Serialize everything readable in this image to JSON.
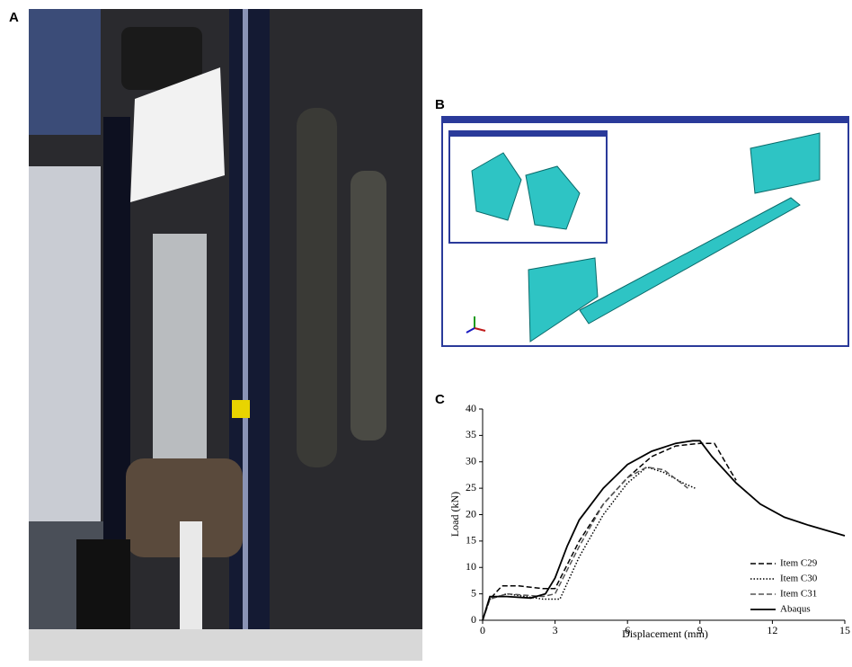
{
  "panels": {
    "a": "A",
    "b": "B",
    "c": "C"
  },
  "chart_data": {
    "type": "line",
    "x_label": "Displacement  (mm)",
    "y_label": "Load (kN)",
    "xlim": [
      0,
      15
    ],
    "ylim": [
      0,
      40
    ],
    "xticks": [
      0,
      3,
      6,
      9,
      12,
      15
    ],
    "yticks": [
      0,
      5,
      10,
      15,
      20,
      25,
      30,
      35,
      40
    ],
    "legend": "lower right",
    "series": [
      {
        "name": "Item C29",
        "color": "#000000",
        "style": "dashed",
        "x": [
          0,
          0.3,
          0.8,
          1.5,
          2.5,
          3,
          4,
          5,
          6,
          7,
          8,
          9,
          9.6,
          10.3,
          10.5
        ],
        "values": [
          0,
          4,
          6.5,
          6.5,
          6,
          6,
          15,
          22,
          27,
          31,
          33,
          33.5,
          33.5,
          28,
          26.5
        ]
      },
      {
        "name": "Item C30",
        "color": "#000000",
        "style": "dotted",
        "x": [
          0,
          0.3,
          1,
          2.5,
          3.2,
          4,
          5,
          6,
          6.8,
          7.5,
          8.3,
          8.8
        ],
        "values": [
          0,
          4,
          5,
          4,
          4,
          12,
          20,
          26,
          29,
          28,
          26,
          25
        ]
      },
      {
        "name": "Item C31",
        "color": "#555555",
        "style": "dashed",
        "x": [
          0,
          0.3,
          1,
          2.5,
          3,
          4,
          5,
          6,
          6.8,
          7.5,
          8.5
        ],
        "values": [
          0,
          4,
          5,
          4.5,
          5,
          14,
          22,
          27,
          29,
          28.5,
          25
        ]
      },
      {
        "name": "Abaqus",
        "color": "#000000",
        "style": "solid",
        "x": [
          0,
          0.3,
          1,
          2,
          2.6,
          3,
          3.5,
          4,
          5,
          6,
          7,
          8,
          8.7,
          9,
          9.5,
          10.5,
          11.5,
          12.5,
          13.5,
          15
        ],
        "values": [
          0,
          4.5,
          4.5,
          4.2,
          5,
          8,
          14,
          19,
          25,
          29.5,
          32,
          33.5,
          34,
          34,
          31,
          26,
          22,
          19.5,
          18,
          16
        ]
      }
    ]
  }
}
